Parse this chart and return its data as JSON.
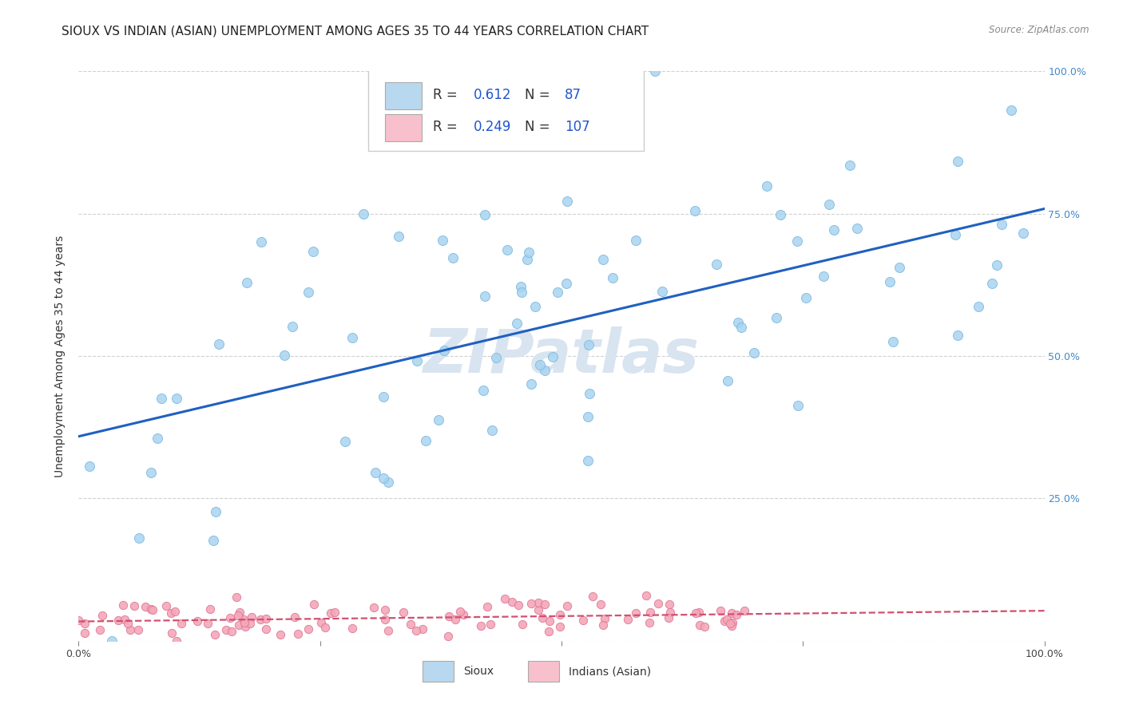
{
  "title": "SIOUX VS INDIAN (ASIAN) UNEMPLOYMENT AMONG AGES 35 TO 44 YEARS CORRELATION CHART",
  "source": "Source: ZipAtlas.com",
  "ylabel": "Unemployment Among Ages 35 to 44 years",
  "xlim": [
    0,
    1
  ],
  "ylim": [
    0,
    1
  ],
  "xticks": [
    0.0,
    0.25,
    0.5,
    0.75,
    1.0
  ],
  "xticklabels": [
    "0.0%",
    "",
    "",
    "",
    "100.0%"
  ],
  "yticks": [
    0.0,
    0.25,
    0.5,
    0.75,
    1.0
  ],
  "yticklabels_right": [
    "",
    "25.0%",
    "50.0%",
    "75.0%",
    "100.0%"
  ],
  "sioux_R": 0.612,
  "sioux_N": 87,
  "indian_R": 0.249,
  "indian_N": 107,
  "sioux_color": "#A8D4F0",
  "sioux_edge": "#7AB8E0",
  "indian_color": "#F4A8B8",
  "indian_edge": "#E07898",
  "sioux_line_color": "#2060C0",
  "indian_line_color": "#D05070",
  "legend_box_color_sioux": "#B8D8F0",
  "legend_box_color_indian": "#F8C0CC",
  "watermark_color": "#D8E4F0",
  "background_color": "#ffffff",
  "grid_color": "#cccccc",
  "title_fontsize": 11,
  "axis_label_fontsize": 10,
  "tick_fontsize": 9,
  "right_tick_color": "#4488CC",
  "bottom_tick_color": "#444444"
}
